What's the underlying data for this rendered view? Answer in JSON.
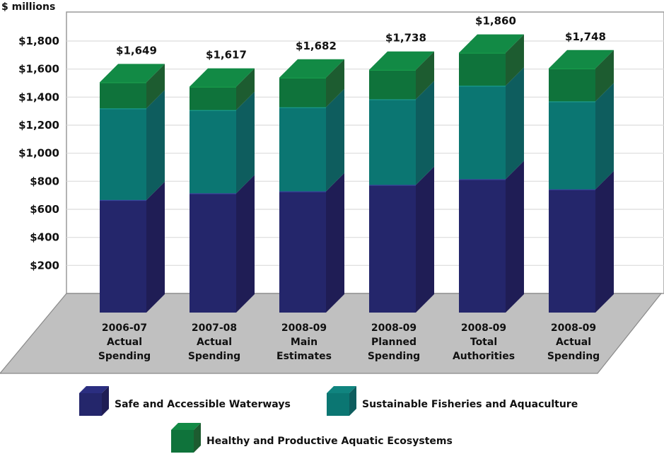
{
  "chart_data": {
    "type": "bar",
    "stacked": true,
    "three_d": true,
    "title": "",
    "unit_label": "$ millions",
    "xlabel": "",
    "ylabel": "$ millions",
    "ylim": [
      0,
      1900
    ],
    "yticks": [
      200,
      400,
      600,
      800,
      1000,
      1200,
      1400,
      1600,
      1800
    ],
    "ytick_labels": [
      "$200",
      "$400",
      "$600",
      "$800",
      "$1,000",
      "$1,200",
      "$1,400",
      "$1,600",
      "$1,800"
    ],
    "grid": true,
    "legend_position": "bottom",
    "categories": [
      [
        "2006-07",
        "Actual",
        "Spending"
      ],
      [
        "2007-08",
        "Actual",
        "Spending"
      ],
      [
        "2008-09",
        "Main",
        "Estimates"
      ],
      [
        "2008-09",
        "Planned",
        "Spending"
      ],
      [
        "2008-09",
        "Total",
        "Authorities"
      ],
      [
        "2008-09",
        "Actual",
        "Spending"
      ]
    ],
    "series": [
      {
        "name": "Safe and Accessible Waterways",
        "color": "#24266b",
        "side_color": "#1f1d55",
        "top_color": "#2b2e80",
        "line_color": "#3a3f9a",
        "values": [
          806,
          854,
          868,
          914,
          955,
          882
        ]
      },
      {
        "name": "Sustainable Fisheries and Aquaculture",
        "color": "#0b7672",
        "side_color": "#0e5d5e",
        "top_color": "#10847f",
        "line_color": "#1a9a90",
        "values": [
          656,
          596,
          602,
          613,
          669,
          630
        ]
      },
      {
        "name": "Healthy and Productive Aquatic Ecosystems",
        "color": "#0f733b",
        "side_color": "#1d5c30",
        "top_color": "#128a45",
        "line_color": "#179a4a",
        "values": [
          187,
          167,
          212,
          211,
          236,
          236
        ]
      }
    ],
    "totals": [
      1649,
      1617,
      1682,
      1738,
      1860,
      1748
    ],
    "total_labels": [
      "$1,649",
      "$1,617",
      "$1,682",
      "$1,738",
      "$1,860",
      "$1,748"
    ],
    "wall_color": "#ffffff",
    "floor_color": "#c0c0c0",
    "grid_color": "#dcdcdc"
  }
}
